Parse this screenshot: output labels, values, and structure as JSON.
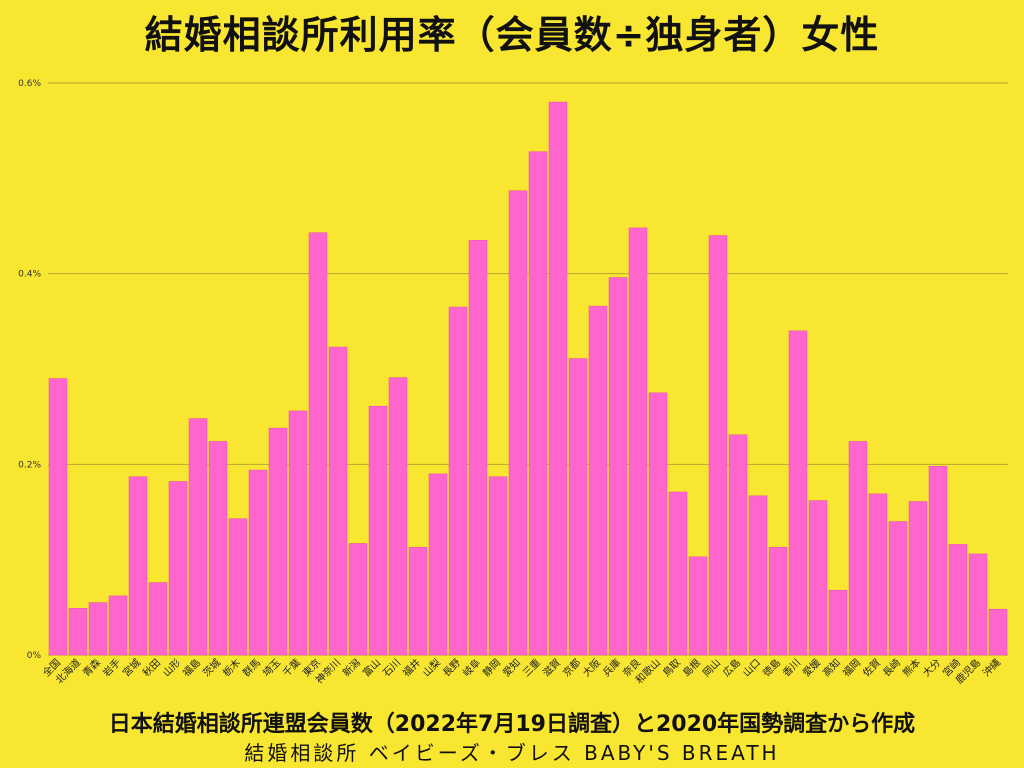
{
  "chart_data": {
    "type": "bar",
    "title": "結婚相談所利用率（会員数÷独身者）女性",
    "xlabel": "",
    "ylabel": "",
    "ylim": [
      0,
      0.6
    ],
    "y_ticks": [
      "0%",
      "0.2%",
      "0.4%",
      "0.6%"
    ],
    "y_tick_values": [
      0,
      0.2,
      0.4,
      0.6
    ],
    "grid": true,
    "bar_color": "#ff66cc",
    "categories": [
      "全国",
      "北海道",
      "青森",
      "岩手",
      "宮城",
      "秋田",
      "山形",
      "福島",
      "茨城",
      "栃木",
      "群馬",
      "埼玉",
      "千葉",
      "東京",
      "神奈川",
      "新潟",
      "富山",
      "石川",
      "福井",
      "山梨",
      "長野",
      "岐阜",
      "静岡",
      "愛知",
      "三重",
      "滋賀",
      "京都",
      "大阪",
      "兵庫",
      "奈良",
      "和歌山",
      "鳥取",
      "島根",
      "岡山",
      "広島",
      "山口",
      "徳島",
      "香川",
      "愛媛",
      "高知",
      "福岡",
      "佐賀",
      "長崎",
      "熊本",
      "大分",
      "宮崎",
      "鹿児島",
      "沖縄"
    ],
    "values": [
      0.29,
      0.049,
      0.055,
      0.062,
      0.187,
      0.076,
      0.182,
      0.248,
      0.224,
      0.143,
      0.194,
      0.238,
      0.256,
      0.443,
      0.323,
      0.117,
      0.261,
      0.291,
      0.113,
      0.19,
      0.365,
      0.435,
      0.187,
      0.487,
      0.528,
      0.58,
      0.311,
      0.366,
      0.396,
      0.448,
      0.275,
      0.171,
      0.103,
      0.44,
      0.231,
      0.167,
      0.113,
      0.34,
      0.162,
      0.068,
      0.224,
      0.169,
      0.14,
      0.161,
      0.198,
      0.116,
      0.106,
      0.048
    ]
  },
  "footer": {
    "source": "日本結婚相談所連盟会員数（2022年7月19日調査）と2020年国勢調査から作成",
    "credit": "結婚相談所 ベイビーズ・ブレス BABY'S BREATH"
  }
}
